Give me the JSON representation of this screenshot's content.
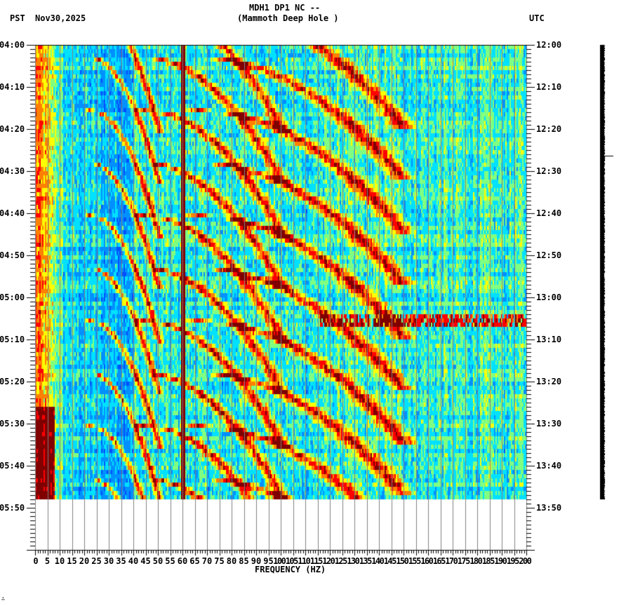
{
  "header": {
    "station_line": "MDH1 DP1 NC --",
    "location_line": "(Mammoth Deep Hole )",
    "left_timezone": "PST",
    "date": "Nov30,2025",
    "right_timezone": "UTC"
  },
  "footer": {
    "corner_mark": "∴"
  },
  "colors": {
    "background": "#ffffff",
    "grid": "#808080",
    "axis": "#000000",
    "colormap": [
      "#0050ff",
      "#0090ff",
      "#00e0ff",
      "#80ff80",
      "#ffff00",
      "#ff8000",
      "#ff0000",
      "#800000"
    ],
    "trace": "#000000"
  },
  "chart_data": {
    "type": "heatmap",
    "title": "MDH1 DP1 NC -- (Mammoth Deep Hole )",
    "xlabel": "FREQUENCY (HZ)",
    "ylabel_left": "PST",
    "ylabel_right": "UTC",
    "xlim": [
      0,
      200
    ],
    "x_ticks": [
      0,
      5,
      10,
      15,
      20,
      25,
      30,
      35,
      40,
      45,
      50,
      55,
      60,
      65,
      70,
      75,
      80,
      85,
      90,
      95,
      100,
      105,
      110,
      115,
      120,
      125,
      130,
      135,
      140,
      145,
      150,
      155,
      160,
      165,
      170,
      175,
      180,
      185,
      190,
      195,
      200
    ],
    "x_tick_labels": [
      "0",
      "5",
      "10",
      "15",
      "20",
      "25",
      "30",
      "35",
      "40",
      "45",
      "50",
      "55",
      "60",
      "65",
      "70",
      "75",
      "80",
      "85",
      "90",
      "95",
      "100",
      "105",
      "110",
      "115",
      "120",
      "125",
      "130",
      "135",
      "140",
      "145",
      "150",
      "155",
      "160",
      "165",
      "170",
      "175",
      "180",
      "185",
      "190",
      "195",
      "200"
    ],
    "y_left_labels": [
      "04:00",
      "04:10",
      "04:20",
      "04:30",
      "04:40",
      "04:50",
      "05:00",
      "05:10",
      "05:20",
      "05:30",
      "05:40",
      "05:50"
    ],
    "y_right_labels": [
      "12:00",
      "12:10",
      "12:20",
      "12:30",
      "12:40",
      "12:50",
      "13:00",
      "13:10",
      "13:20",
      "13:30",
      "13:40",
      "13:50"
    ],
    "y_minor_tick_interval_min": 1,
    "data_time_range_pst": [
      "04:00",
      "05:48"
    ],
    "grid": true,
    "features": [
      {
        "type": "constant_line",
        "frequency_hz": 60,
        "intensity": "max"
      },
      {
        "type": "low_frequency_energy",
        "range_hz": [
          0,
          10
        ],
        "strongest_after": "05:25"
      },
      {
        "type": "curved_sweeping_harmonics",
        "period_min": 13,
        "range_hz": [
          20,
          140
        ],
        "description": "upward-curving bands repeating roughly every 12-13 minutes"
      },
      {
        "type": "horizontal_burst",
        "time_pst": "05:05",
        "range_hz": [
          115,
          200
        ]
      }
    ],
    "side_trace": {
      "type": "seismogram_column",
      "time_range_pst": [
        "04:00",
        "05:48"
      ],
      "spike_time_pst": "04:26"
    }
  }
}
